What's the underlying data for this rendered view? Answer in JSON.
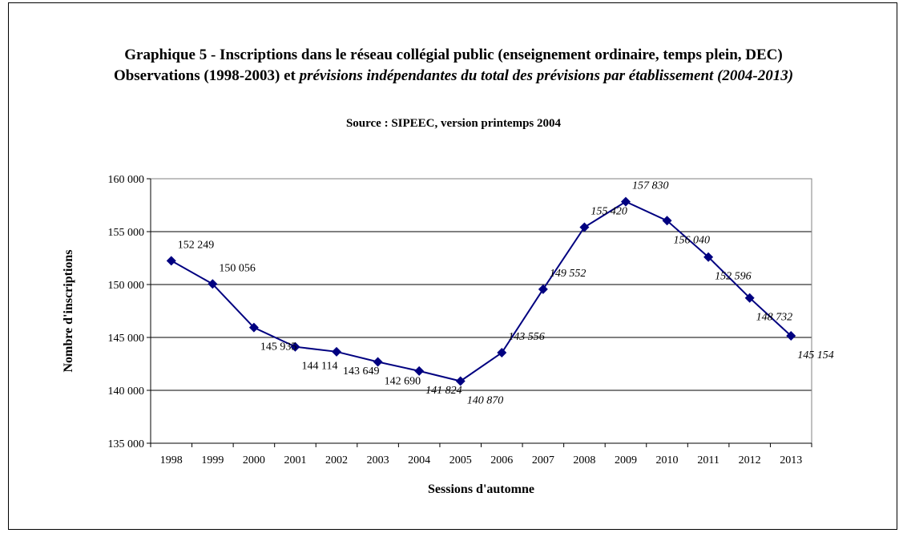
{
  "chart_data": {
    "type": "line",
    "title_line1": "Graphique 5 - Inscriptions dans le réseau collégial public (enseignement ordinaire, temps plein, DEC) Observations (1998-2003) et",
    "title_italic": "prévisions indépendantes du total des prévisions par établissement (2004-2013)",
    "subtitle": "Source : SIPEEC, version printemps 2004",
    "xlabel": "Sessions d'automne",
    "ylabel": "Nombre d'inscriptions",
    "ylim": [
      135000,
      160000
    ],
    "yticks": [
      135000,
      140000,
      145000,
      150000,
      155000,
      160000
    ],
    "ytick_labels": [
      "135 000",
      "140 000",
      "145 000",
      "150 000",
      "155 000",
      "160 000"
    ],
    "grid": true,
    "legend": "none",
    "line_color": "#000080",
    "categories": [
      "1998",
      "1999",
      "2000",
      "2001",
      "2002",
      "2003",
      "2004",
      "2005",
      "2006",
      "2007",
      "2008",
      "2009",
      "2010",
      "2011",
      "2012",
      "2013"
    ],
    "series": [
      {
        "values": [
          152249,
          150056,
          145935,
          144114,
          143649,
          142690,
          141824,
          140870,
          143556,
          149552,
          155420,
          157830,
          156040,
          152596,
          148732,
          145154
        ],
        "labels": [
          "152 249",
          "150 056",
          "145 935",
          "144 114",
          "143 649",
          "142 690",
          "141 824",
          "140 870",
          "143 556",
          "149 552",
          "155 420",
          "157 830",
          "156 040",
          "152 596",
          "148 732",
          "145 154"
        ],
        "label_italic": [
          false,
          false,
          false,
          false,
          false,
          false,
          true,
          true,
          true,
          true,
          true,
          true,
          true,
          true,
          true,
          true
        ]
      }
    ]
  }
}
